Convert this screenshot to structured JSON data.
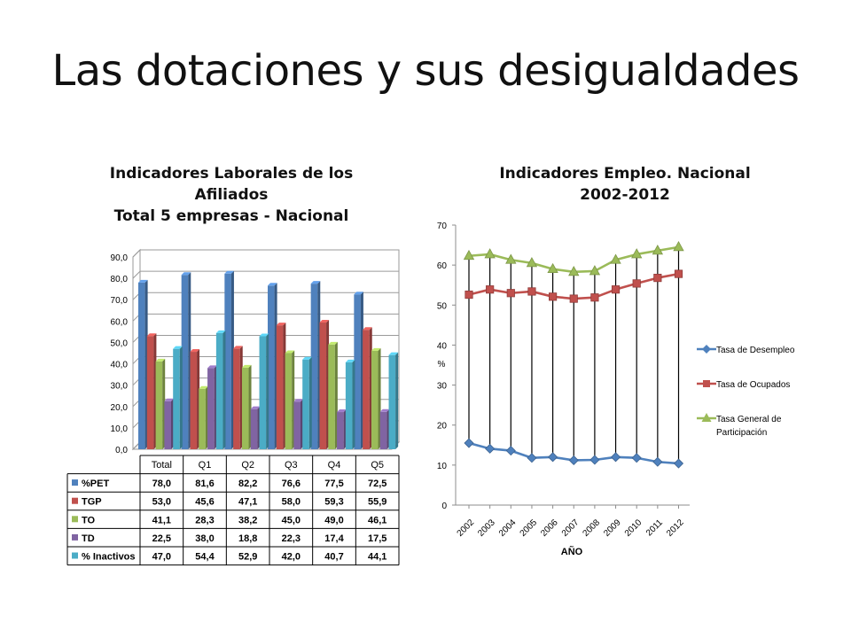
{
  "slide": {
    "title": "Las dotaciones y sus desigualdades"
  },
  "colors": {
    "pet": "#4F81BD",
    "tgp": "#C0504D",
    "to": "#9BBB59",
    "td": "#8064A2",
    "inactivos": "#4BACC6"
  },
  "chart_data": [
    {
      "type": "bar",
      "title_lines": [
        "Indicadores Laborales de los",
        "Afiliados",
        "Total 5 empresas - Nacional"
      ],
      "categories": [
        "Total",
        "Q1",
        "Q2",
        "Q3",
        "Q4",
        "Q5"
      ],
      "series": [
        {
          "name": "%PET",
          "color": "#4F81BD",
          "values": [
            78.0,
            81.6,
            82.2,
            76.6,
            77.5,
            72.5
          ],
          "labels": [
            "78,0",
            "81,6",
            "82,2",
            "76,6",
            "77,5",
            "72,5"
          ]
        },
        {
          "name": "TGP",
          "color": "#C0504D",
          "values": [
            53.0,
            45.6,
            47.1,
            58.0,
            59.3,
            55.9
          ],
          "labels": [
            "53,0",
            "45,6",
            "47,1",
            "58,0",
            "59,3",
            "55,9"
          ]
        },
        {
          "name": "TO",
          "color": "#9BBB59",
          "values": [
            41.1,
            28.3,
            38.2,
            45.0,
            49.0,
            46.1
          ],
          "labels": [
            "41,1",
            "28,3",
            "38,2",
            "45,0",
            "49,0",
            "46,1"
          ]
        },
        {
          "name": "TD",
          "color": "#8064A2",
          "values": [
            22.5,
            38.0,
            18.8,
            22.3,
            17.4,
            17.5
          ],
          "labels": [
            "22,5",
            "38,0",
            "18,8",
            "22,3",
            "17,4",
            "17,5"
          ]
        },
        {
          "name": "% Inactivos",
          "color": "#4BACC6",
          "values": [
            47.0,
            54.4,
            52.9,
            42.0,
            40.7,
            44.1
          ],
          "labels": [
            "47,0",
            "54,4",
            "52,9",
            "42,0",
            "40,7",
            "44,1"
          ]
        }
      ],
      "ylim": [
        0,
        90
      ],
      "yticks": [
        "0,0",
        "10,0",
        "20,0",
        "30,0",
        "40,0",
        "50,0",
        "60,0",
        "70,0",
        "80,0",
        "90,0"
      ],
      "grid": true,
      "legend": "data-table"
    },
    {
      "type": "line",
      "title_lines": [
        "Indicadores Empleo. Nacional",
        "2002-2012"
      ],
      "x": [
        "2002",
        "2003",
        "2004",
        "2005",
        "2006",
        "2007",
        "2008",
        "2009",
        "2010",
        "2011",
        "2012"
      ],
      "series": [
        {
          "name": "Tasa de Desempleo",
          "color": "#4F81BD",
          "marker": "diamond",
          "values": [
            15.5,
            14.1,
            13.6,
            11.8,
            12.0,
            11.2,
            11.3,
            12.0,
            11.8,
            10.8,
            10.4
          ]
        },
        {
          "name": "Tasa de Ocupados",
          "color": "#C0504D",
          "marker": "square",
          "values": [
            52.6,
            53.9,
            53.0,
            53.4,
            52.1,
            51.6,
            51.9,
            53.9,
            55.4,
            56.8,
            57.8
          ]
        },
        {
          "name_lines": [
            "Tasa General de",
            "Participación"
          ],
          "color": "#9BBB59",
          "marker": "triangle",
          "values": [
            62.3,
            62.7,
            61.3,
            60.5,
            59.0,
            58.3,
            58.5,
            61.3,
            62.7,
            63.6,
            64.5
          ]
        }
      ],
      "ylabel": "%",
      "xlabel": "AÑO",
      "ylim": [
        0,
        70
      ],
      "yticks": [
        "0",
        "10",
        "20",
        "30",
        "40",
        "50",
        "60",
        "70"
      ],
      "grid": false,
      "high_low_lines": true,
      "legend": "right"
    }
  ]
}
